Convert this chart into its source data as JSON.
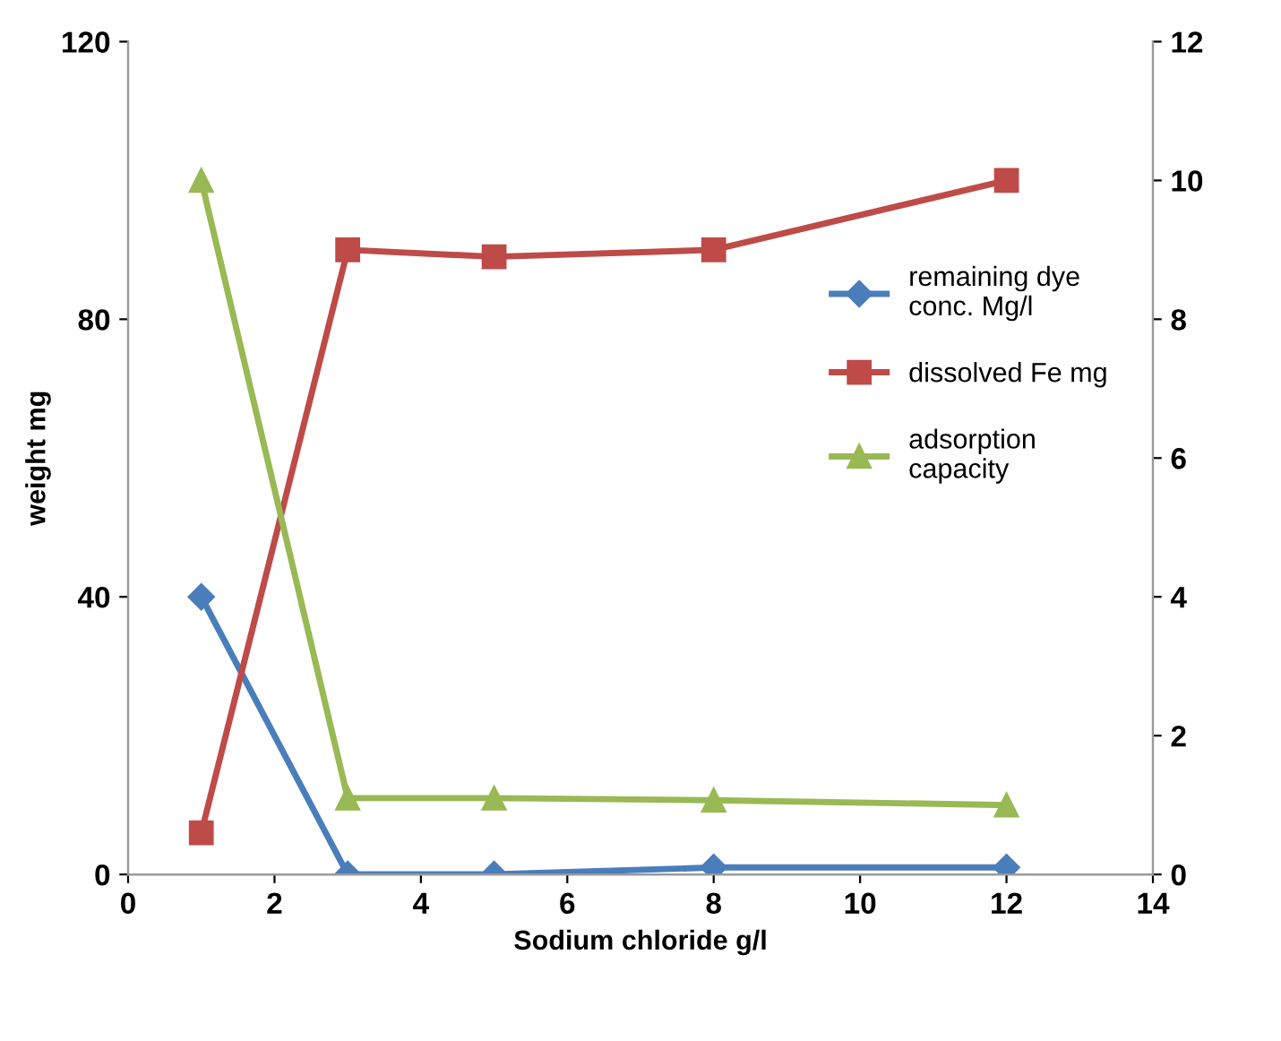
{
  "chart_data": {
    "type": "line",
    "xlabel": "Sodium chloride g/l",
    "ylabel": "weight mg",
    "x": [
      1,
      3,
      5,
      8,
      12
    ],
    "series": [
      {
        "name": "remaining dye\nconc. Mg/l",
        "color": "#4a7ebb",
        "marker": "diamond",
        "axis": "y2",
        "values": [
          4.0,
          0,
          0,
          0.1,
          0.1
        ]
      },
      {
        "name": "dissolved Fe mg",
        "color": "#be4b48",
        "marker": "square",
        "axis": "y2",
        "values": [
          0.6,
          9.0,
          8.9,
          9.0,
          10.0
        ]
      },
      {
        "name": "adsorption\ncapacity",
        "color": "#98b954",
        "marker": "triangle",
        "axis": "y2",
        "values": [
          10.0,
          1.1,
          1.1,
          1.07,
          1.0
        ]
      }
    ],
    "xlim": [
      0,
      14
    ],
    "xticks": [
      0,
      2,
      4,
      6,
      8,
      10,
      12,
      14
    ],
    "ylim": [
      0,
      120
    ],
    "yticks": [
      0,
      40,
      80,
      120
    ],
    "y2lim": [
      0,
      12
    ],
    "y2ticks": [
      0,
      2,
      4,
      6,
      8,
      10,
      12
    ],
    "legend": "right",
    "grid": false
  }
}
